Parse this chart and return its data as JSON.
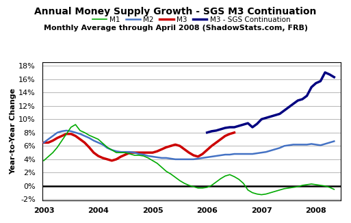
{
  "title": "Annual Money Supply Growth - SGS M3 Continuation",
  "subtitle": "Monthly Average through April 2008 (ShadowStats.com, FRB)",
  "ylabel": "Year-to-Year Change",
  "xlim_years": [
    2002.97,
    2008.45
  ],
  "ylim": [
    -0.022,
    0.185
  ],
  "yticks": [
    -0.02,
    0.0,
    0.02,
    0.04,
    0.06,
    0.08,
    0.1,
    0.12,
    0.14,
    0.16,
    0.18
  ],
  "xticks": [
    2003,
    2004,
    2005,
    2006,
    2007,
    2008
  ],
  "background_color": "#ffffff",
  "plot_bg_color": "#ffffff",
  "legend_labels": [
    "M1",
    "M2",
    "M3",
    "M3 - SGS Continuation"
  ],
  "legend_colors": [
    "#00aa00",
    "#4472c4",
    "#cc0000",
    "#000080"
  ],
  "legend_lws": [
    1.2,
    1.8,
    2.5,
    2.5
  ],
  "series": {
    "M1": {
      "color": "#00aa00",
      "lw": 1.2,
      "data": [
        [
          2003.0,
          0.038
        ],
        [
          2003.083,
          0.044
        ],
        [
          2003.167,
          0.05
        ],
        [
          2003.25,
          0.058
        ],
        [
          2003.333,
          0.068
        ],
        [
          2003.417,
          0.078
        ],
        [
          2003.5,
          0.088
        ],
        [
          2003.583,
          0.092
        ],
        [
          2003.667,
          0.083
        ],
        [
          2003.75,
          0.08
        ],
        [
          2003.833,
          0.076
        ],
        [
          2003.917,
          0.073
        ],
        [
          2004.0,
          0.07
        ],
        [
          2004.083,
          0.064
        ],
        [
          2004.167,
          0.058
        ],
        [
          2004.25,
          0.054
        ],
        [
          2004.333,
          0.05
        ],
        [
          2004.417,
          0.05
        ],
        [
          2004.5,
          0.05
        ],
        [
          2004.583,
          0.048
        ],
        [
          2004.667,
          0.046
        ],
        [
          2004.75,
          0.046
        ],
        [
          2004.833,
          0.045
        ],
        [
          2004.917,
          0.042
        ],
        [
          2005.0,
          0.038
        ],
        [
          2005.083,
          0.034
        ],
        [
          2005.167,
          0.028
        ],
        [
          2005.25,
          0.022
        ],
        [
          2005.333,
          0.018
        ],
        [
          2005.417,
          0.013
        ],
        [
          2005.5,
          0.008
        ],
        [
          2005.583,
          0.004
        ],
        [
          2005.667,
          0.001
        ],
        [
          2005.75,
          -0.001
        ],
        [
          2005.833,
          -0.003
        ],
        [
          2005.917,
          -0.003
        ],
        [
          2006.0,
          -0.002
        ],
        [
          2006.083,
          0.001
        ],
        [
          2006.167,
          0.006
        ],
        [
          2006.25,
          0.011
        ],
        [
          2006.333,
          0.015
        ],
        [
          2006.417,
          0.017
        ],
        [
          2006.5,
          0.014
        ],
        [
          2006.583,
          0.01
        ],
        [
          2006.667,
          0.004
        ],
        [
          2006.75,
          -0.006
        ],
        [
          2006.833,
          -0.01
        ],
        [
          2006.917,
          -0.012
        ],
        [
          2007.0,
          -0.013
        ],
        [
          2007.083,
          -0.012
        ],
        [
          2007.167,
          -0.01
        ],
        [
          2007.25,
          -0.008
        ],
        [
          2007.333,
          -0.006
        ],
        [
          2007.417,
          -0.004
        ],
        [
          2007.5,
          -0.003
        ],
        [
          2007.583,
          -0.002
        ],
        [
          2007.667,
          -0.001
        ],
        [
          2007.75,
          0.001
        ],
        [
          2007.833,
          0.002
        ],
        [
          2007.917,
          0.003
        ],
        [
          2008.0,
          0.002
        ],
        [
          2008.083,
          0.001
        ],
        [
          2008.167,
          0.0
        ],
        [
          2008.25,
          -0.002
        ],
        [
          2008.333,
          -0.005
        ]
      ]
    },
    "M2": {
      "color": "#4472c4",
      "lw": 1.8,
      "data": [
        [
          2003.0,
          0.065
        ],
        [
          2003.083,
          0.07
        ],
        [
          2003.167,
          0.075
        ],
        [
          2003.25,
          0.08
        ],
        [
          2003.333,
          0.082
        ],
        [
          2003.417,
          0.083
        ],
        [
          2003.5,
          0.082
        ],
        [
          2003.583,
          0.08
        ],
        [
          2003.667,
          0.078
        ],
        [
          2003.75,
          0.075
        ],
        [
          2003.833,
          0.072
        ],
        [
          2003.917,
          0.068
        ],
        [
          2004.0,
          0.065
        ],
        [
          2004.083,
          0.062
        ],
        [
          2004.167,
          0.057
        ],
        [
          2004.25,
          0.054
        ],
        [
          2004.333,
          0.052
        ],
        [
          2004.417,
          0.051
        ],
        [
          2004.5,
          0.051
        ],
        [
          2004.583,
          0.051
        ],
        [
          2004.667,
          0.05
        ],
        [
          2004.75,
          0.048
        ],
        [
          2004.833,
          0.047
        ],
        [
          2004.917,
          0.045
        ],
        [
          2005.0,
          0.044
        ],
        [
          2005.083,
          0.043
        ],
        [
          2005.167,
          0.042
        ],
        [
          2005.25,
          0.042
        ],
        [
          2005.333,
          0.041
        ],
        [
          2005.417,
          0.04
        ],
        [
          2005.5,
          0.04
        ],
        [
          2005.583,
          0.04
        ],
        [
          2005.667,
          0.04
        ],
        [
          2005.75,
          0.04
        ],
        [
          2005.833,
          0.041
        ],
        [
          2005.917,
          0.042
        ],
        [
          2006.0,
          0.043
        ],
        [
          2006.083,
          0.044
        ],
        [
          2006.167,
          0.045
        ],
        [
          2006.25,
          0.046
        ],
        [
          2006.333,
          0.047
        ],
        [
          2006.417,
          0.047
        ],
        [
          2006.5,
          0.048
        ],
        [
          2006.583,
          0.048
        ],
        [
          2006.667,
          0.048
        ],
        [
          2006.75,
          0.048
        ],
        [
          2006.833,
          0.048
        ],
        [
          2006.917,
          0.049
        ],
        [
          2007.0,
          0.05
        ],
        [
          2007.083,
          0.051
        ],
        [
          2007.167,
          0.053
        ],
        [
          2007.25,
          0.055
        ],
        [
          2007.333,
          0.057
        ],
        [
          2007.417,
          0.06
        ],
        [
          2007.5,
          0.061
        ],
        [
          2007.583,
          0.062
        ],
        [
          2007.667,
          0.062
        ],
        [
          2007.75,
          0.062
        ],
        [
          2007.833,
          0.062
        ],
        [
          2007.917,
          0.063
        ],
        [
          2008.0,
          0.062
        ],
        [
          2008.083,
          0.061
        ],
        [
          2008.167,
          0.063
        ],
        [
          2008.25,
          0.065
        ],
        [
          2008.333,
          0.067
        ]
      ]
    },
    "M3": {
      "color": "#cc0000",
      "lw": 2.5,
      "data": [
        [
          2003.0,
          0.065
        ],
        [
          2003.083,
          0.065
        ],
        [
          2003.167,
          0.068
        ],
        [
          2003.25,
          0.072
        ],
        [
          2003.333,
          0.075
        ],
        [
          2003.417,
          0.078
        ],
        [
          2003.5,
          0.078
        ],
        [
          2003.583,
          0.075
        ],
        [
          2003.667,
          0.07
        ],
        [
          2003.75,
          0.065
        ],
        [
          2003.833,
          0.058
        ],
        [
          2003.917,
          0.05
        ],
        [
          2004.0,
          0.045
        ],
        [
          2004.083,
          0.042
        ],
        [
          2004.167,
          0.04
        ],
        [
          2004.25,
          0.038
        ],
        [
          2004.333,
          0.04
        ],
        [
          2004.417,
          0.044
        ],
        [
          2004.5,
          0.047
        ],
        [
          2004.583,
          0.05
        ],
        [
          2004.667,
          0.05
        ],
        [
          2004.75,
          0.05
        ],
        [
          2004.833,
          0.05
        ],
        [
          2004.917,
          0.05
        ],
        [
          2005.0,
          0.05
        ],
        [
          2005.083,
          0.052
        ],
        [
          2005.167,
          0.055
        ],
        [
          2005.25,
          0.058
        ],
        [
          2005.333,
          0.06
        ],
        [
          2005.417,
          0.062
        ],
        [
          2005.5,
          0.06
        ],
        [
          2005.583,
          0.055
        ],
        [
          2005.667,
          0.05
        ],
        [
          2005.75,
          0.046
        ],
        [
          2005.833,
          0.044
        ],
        [
          2005.917,
          0.048
        ],
        [
          2006.0,
          0.054
        ],
        [
          2006.083,
          0.06
        ],
        [
          2006.167,
          0.065
        ],
        [
          2006.25,
          0.07
        ],
        [
          2006.333,
          0.075
        ],
        [
          2006.417,
          0.078
        ],
        [
          2006.5,
          0.08
        ]
      ]
    },
    "M3_SGS": {
      "color": "#000080",
      "lw": 2.5,
      "data": [
        [
          2006.0,
          0.08
        ],
        [
          2006.083,
          0.082
        ],
        [
          2006.167,
          0.083
        ],
        [
          2006.25,
          0.085
        ],
        [
          2006.333,
          0.087
        ],
        [
          2006.417,
          0.088
        ],
        [
          2006.5,
          0.088
        ],
        [
          2006.583,
          0.09
        ],
        [
          2006.667,
          0.092
        ],
        [
          2006.75,
          0.094
        ],
        [
          2006.833,
          0.088
        ],
        [
          2006.917,
          0.093
        ],
        [
          2007.0,
          0.1
        ],
        [
          2007.083,
          0.102
        ],
        [
          2007.167,
          0.104
        ],
        [
          2007.25,
          0.106
        ],
        [
          2007.333,
          0.108
        ],
        [
          2007.417,
          0.113
        ],
        [
          2007.5,
          0.118
        ],
        [
          2007.583,
          0.123
        ],
        [
          2007.667,
          0.128
        ],
        [
          2007.75,
          0.13
        ],
        [
          2007.833,
          0.135
        ],
        [
          2007.917,
          0.148
        ],
        [
          2008.0,
          0.154
        ],
        [
          2008.083,
          0.157
        ],
        [
          2008.167,
          0.17
        ],
        [
          2008.25,
          0.167
        ],
        [
          2008.333,
          0.163
        ]
      ]
    }
  }
}
